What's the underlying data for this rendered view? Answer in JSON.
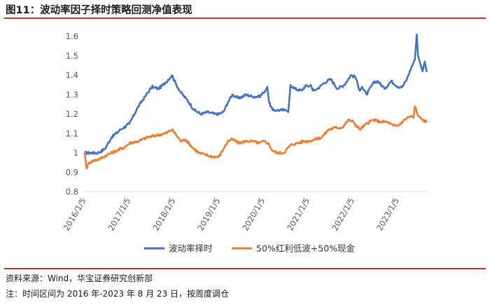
{
  "header": {
    "title": "图11：波动率因子择时策略回测净值表现"
  },
  "footer": {
    "source": "资料来源：Wind，华宝证券研究创新部",
    "note": "注：时间区间为 2016 年-2023 年 8 月 23 日，按周度调仓"
  },
  "colors": {
    "series_blue": "#4472C4",
    "series_orange": "#ED7D31",
    "accent_rule": "#c0392b"
  },
  "chart_data": {
    "type": "line",
    "ylim": [
      0.8,
      1.6
    ],
    "yticks": [
      "0.8",
      "0.9",
      "1",
      "1.1",
      "1.2",
      "1.3",
      "1.4",
      "1.5",
      "1.6"
    ],
    "ytick_values": [
      0.8,
      0.9,
      1.0,
      1.1,
      1.2,
      1.3,
      1.4,
      1.5,
      1.6
    ],
    "xlim": [
      2016.0,
      2023.65
    ],
    "xticks": [
      "2016/1/5",
      "2017/1/5",
      "2018/1/5",
      "2019/1/5",
      "2020/1/5",
      "2021/1/5",
      "2022/1/5",
      "2023/1/5"
    ],
    "xtick_values": [
      2016.0,
      2017.0,
      2018.0,
      2019.0,
      2020.0,
      2021.0,
      2022.0,
      2023.0
    ],
    "legend_position": "bottom",
    "series": [
      {
        "name": "波动率择时",
        "color": "#4472C4",
        "x": [
          2016.0,
          2016.3,
          2016.45,
          2016.6,
          2016.8,
          2017.0,
          2017.2,
          2017.35,
          2017.5,
          2017.65,
          2017.8,
          2017.95,
          2018.05,
          2018.15,
          2018.3,
          2018.45,
          2018.6,
          2018.75,
          2018.9,
          2019.0,
          2019.1,
          2019.2,
          2019.3,
          2019.45,
          2019.6,
          2019.75,
          2019.9,
          2020.0,
          2020.08,
          2020.12,
          2020.2,
          2020.3,
          2020.4,
          2020.5,
          2020.55,
          2020.6,
          2020.7,
          2020.85,
          2020.95,
          2021.0,
          2021.05,
          2021.1,
          2021.2,
          2021.35,
          2021.5,
          2021.65,
          2021.8,
          2021.95,
          2022.05,
          2022.15,
          2022.2,
          2022.3,
          2022.45,
          2022.55,
          2022.7,
          2022.85,
          2023.0,
          2023.1,
          2023.2,
          2023.3,
          2023.38,
          2023.42,
          2023.45,
          2023.5,
          2023.55,
          2023.6,
          2023.64
        ],
        "y": [
          1.0,
          1.0,
          1.02,
          1.08,
          1.12,
          1.15,
          1.24,
          1.29,
          1.34,
          1.33,
          1.36,
          1.4,
          1.35,
          1.31,
          1.27,
          1.22,
          1.2,
          1.21,
          1.2,
          1.2,
          1.21,
          1.26,
          1.3,
          1.28,
          1.3,
          1.29,
          1.29,
          1.31,
          1.34,
          1.26,
          1.22,
          1.22,
          1.22,
          1.22,
          1.21,
          1.35,
          1.33,
          1.32,
          1.35,
          1.34,
          1.35,
          1.32,
          1.33,
          1.36,
          1.38,
          1.33,
          1.35,
          1.4,
          1.39,
          1.32,
          1.34,
          1.3,
          1.36,
          1.37,
          1.33,
          1.37,
          1.34,
          1.34,
          1.38,
          1.44,
          1.48,
          1.61,
          1.5,
          1.46,
          1.42,
          1.47,
          1.42
        ]
      },
      {
        "name": "50%红利低波+50%现金",
        "color": "#ED7D31",
        "x": [
          2016.0,
          2016.04,
          2016.1,
          2016.2,
          2016.35,
          2016.5,
          2016.7,
          2016.9,
          2017.0,
          2017.2,
          2017.4,
          2017.6,
          2017.8,
          2017.95,
          2018.05,
          2018.15,
          2018.25,
          2018.4,
          2018.55,
          2018.7,
          2018.85,
          2019.0,
          2019.1,
          2019.2,
          2019.3,
          2019.45,
          2019.6,
          2019.75,
          2019.9,
          2020.0,
          2020.1,
          2020.2,
          2020.3,
          2020.45,
          2020.6,
          2020.75,
          2020.9,
          2021.0,
          2021.15,
          2021.3,
          2021.45,
          2021.6,
          2021.75,
          2021.9,
          2022.0,
          2022.15,
          2022.3,
          2022.45,
          2022.6,
          2022.75,
          2022.9,
          2023.0,
          2023.1,
          2023.2,
          2023.3,
          2023.35,
          2023.38,
          2023.45,
          2023.55,
          2023.64
        ],
        "y": [
          1.0,
          0.92,
          0.95,
          0.96,
          0.97,
          0.99,
          1.01,
          1.03,
          1.05,
          1.06,
          1.08,
          1.09,
          1.1,
          1.12,
          1.09,
          1.06,
          1.07,
          1.03,
          1.0,
          0.99,
          0.98,
          0.98,
          1.02,
          1.06,
          1.07,
          1.05,
          1.06,
          1.06,
          1.05,
          1.06,
          1.05,
          1.01,
          1.0,
          1.0,
          1.04,
          1.05,
          1.06,
          1.06,
          1.07,
          1.08,
          1.12,
          1.13,
          1.13,
          1.17,
          1.16,
          1.12,
          1.15,
          1.17,
          1.16,
          1.16,
          1.14,
          1.14,
          1.16,
          1.18,
          1.19,
          1.18,
          1.24,
          1.19,
          1.17,
          1.16
        ]
      }
    ]
  }
}
